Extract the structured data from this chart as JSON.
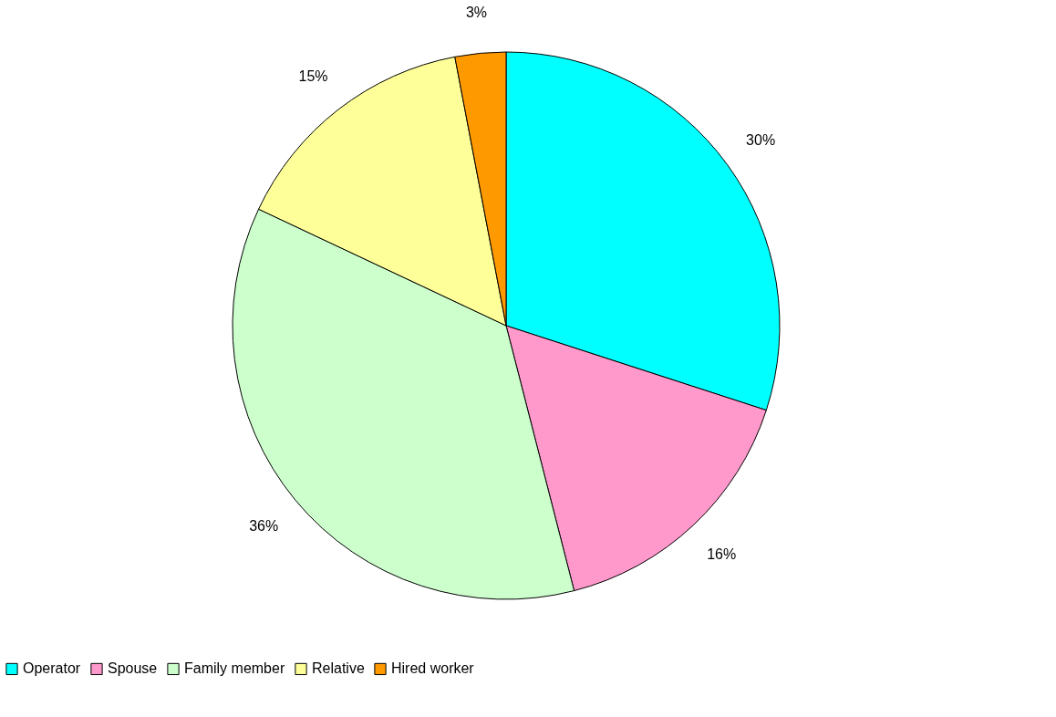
{
  "chart_data": {
    "type": "pie",
    "categories": [
      "Operator",
      "Spouse",
      "Family member",
      "Relative",
      "Hired worker"
    ],
    "values": [
      30,
      16,
      36,
      15,
      3
    ],
    "value_labels": [
      "30%",
      "16%",
      "36%",
      "15%",
      "3%"
    ],
    "colors": [
      "#00ffff",
      "#ff99cc",
      "#ccffcc",
      "#ffff99",
      "#ff9900"
    ],
    "legend": "bottom"
  }
}
